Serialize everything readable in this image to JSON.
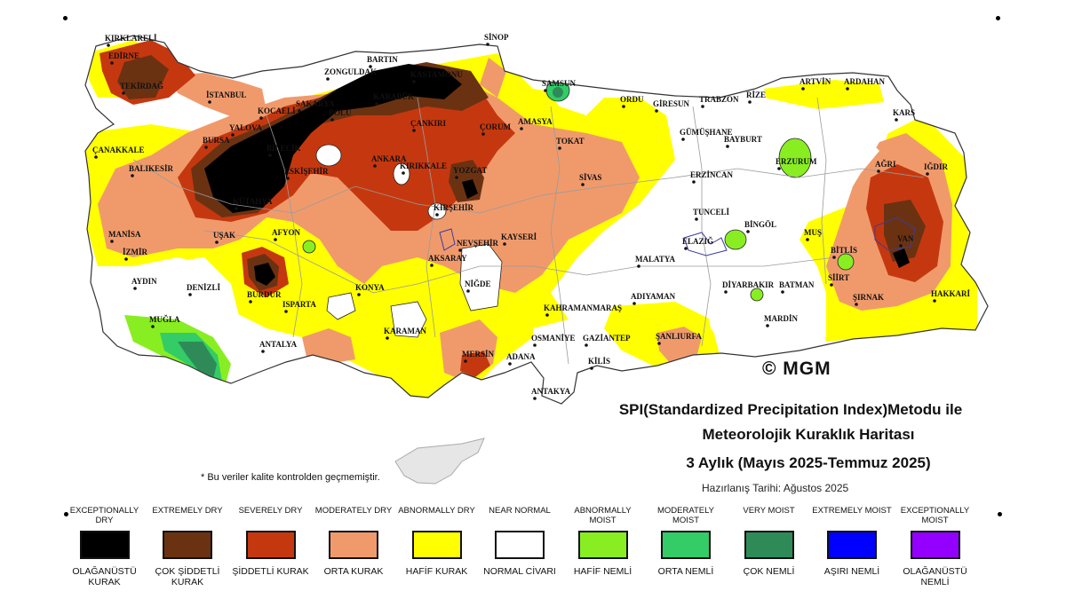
{
  "title": {
    "line1": "SPI(Standardized Precipitation Index)Metodu ile",
    "line2": "Meteorolojik Kuraklık Haritası",
    "line3": "3 Aylık (Mayıs 2025-Temmuz 2025)",
    "prepared": "Hazırlanış Tarihi: Ağustos 2025"
  },
  "note": "* Bu veriler kalite kontrolden geçmemiştir.",
  "logo_text": "© MGM",
  "legend": [
    {
      "en": "EXCEPTIONALLY DRY",
      "tr": "OLAĞANÜSTÜ KURAK",
      "color": "#000000"
    },
    {
      "en": "EXTREMELY DRY",
      "tr": "ÇOK ŞİDDETLİ KURAK",
      "color": "#6b3212"
    },
    {
      "en": "SEVERELY DRY",
      "tr": "ŞİDDETLİ KURAK",
      "color": "#c5380f"
    },
    {
      "en": "MODERATELY DRY",
      "tr": "ORTA KURAK",
      "color": "#f09a6c"
    },
    {
      "en": "ABNORMALLY DRY",
      "tr": "HAFİF KURAK",
      "color": "#ffff00"
    },
    {
      "en": "NEAR NORMAL",
      "tr": "NORMAL CİVARI",
      "color": "#ffffff"
    },
    {
      "en": "ABNORMALLY MOIST",
      "tr": "HAFİF NEMLİ",
      "color": "#88ee22"
    },
    {
      "en": "MODERATELY MOIST",
      "tr": "ORTA NEMLİ",
      "color": "#33cc66"
    },
    {
      "en": "VERY MOIST",
      "tr": "ÇOK NEMLİ",
      "color": "#2e8b57"
    },
    {
      "en": "EXTREMELY MOIST",
      "tr": "AŞIRI NEMLİ",
      "color": "#0000ff"
    },
    {
      "en": "EXCEPTIONALLY MOIST",
      "tr": "OLAĞANÜSTÜ NEMLİ",
      "color": "#9400ff"
    }
  ],
  "cities": {
    "kirklareli": "KIRKLARELİ",
    "edirne": "EDİRNE",
    "tekirdag": "TEKİRDAĞ",
    "istanbul": "İSTANBUL",
    "canakkale": "ÇANAKKALE",
    "balikesir": "BALIKESİR",
    "bursa": "BURSA",
    "yalova": "YALOVA",
    "kocaeli": "KOCAELİ",
    "sakarya": "SAKARYA",
    "bolu": "BOLU",
    "zonguldak": "ZONGULDAK",
    "bartin": "BARTIN",
    "kastamonu": "KASTAMONU",
    "sinop": "SİNOP",
    "samsun": "SAMSUN",
    "ordu": "ORDU",
    "giresun": "GİRESUN",
    "trabzon": "TRABZON",
    "rize": "RİZE",
    "artvin": "ARTVİN",
    "ardahan": "ARDAHAN",
    "kars": "KARS",
    "igdir": "IĞDIR",
    "agri": "AĞRI",
    "erzurum": "ERZURUM",
    "bayburt": "BAYBURT",
    "gumushane": "GÜMÜŞHANE",
    "erzincan": "ERZİNCAN",
    "tunceli": "TUNCELİ",
    "bingol": "BİNGÖL",
    "mus": "MUŞ",
    "bitlis": "BİTLİS",
    "van": "VAN",
    "hakkari": "HAKKARİ",
    "sirnak": "ŞIRNAK",
    "siirt": "SİİRT",
    "batman": "BATMAN",
    "diyarbakir": "DİYARBAKIR",
    "mardin": "MARDİN",
    "elazig": "ELAZIĞ",
    "malatya": "MALATYA",
    "adiyaman": "ADIYAMAN",
    "sanliurfa": "ŞANLIURFA",
    "gaziantep": "GAZİANTEP",
    "kilis": "KİLİS",
    "hatay": "ANTAKYA",
    "osmaniye": "OSMANİYE",
    "adana": "ADANA",
    "mersin": "MERSİN",
    "kahramanmaras": "KAHRAMANMARAŞ",
    "karaman": "KARAMAN",
    "antalya": "ANTALYA",
    "mugla": "MUĞLA",
    "aydin": "AYDIN",
    "denizli": "DENİZLİ",
    "izmir": "İZMİR",
    "manisa": "MANİSA",
    "usak": "UŞAK",
    "kutahya": "KÜTAHYA",
    "afyon": "AFYON",
    "burdur": "BURDUR",
    "isparta": "ISPARTA",
    "konya": "KONYA",
    "aksaray": "AKSARAY",
    "nigde": "NİĞDE",
    "nevsehir": "NEVŞEHİR",
    "kayseri": "KAYSERİ",
    "kirsehir": "KIRŞEHİR",
    "kirikkale": "KIRIKKALE",
    "ankara": "ANKARA",
    "eskisehir": "ESKİŞEHİR",
    "bilecik": "BİLECİK",
    "cankiri": "ÇANKIRI",
    "corum": "ÇORUM",
    "amasya": "AMASYA",
    "tokat": "TOKAT",
    "sivas": "SİVAS",
    "yozgat": "YOZGAT",
    "karabuk": "KARABÜK"
  }
}
